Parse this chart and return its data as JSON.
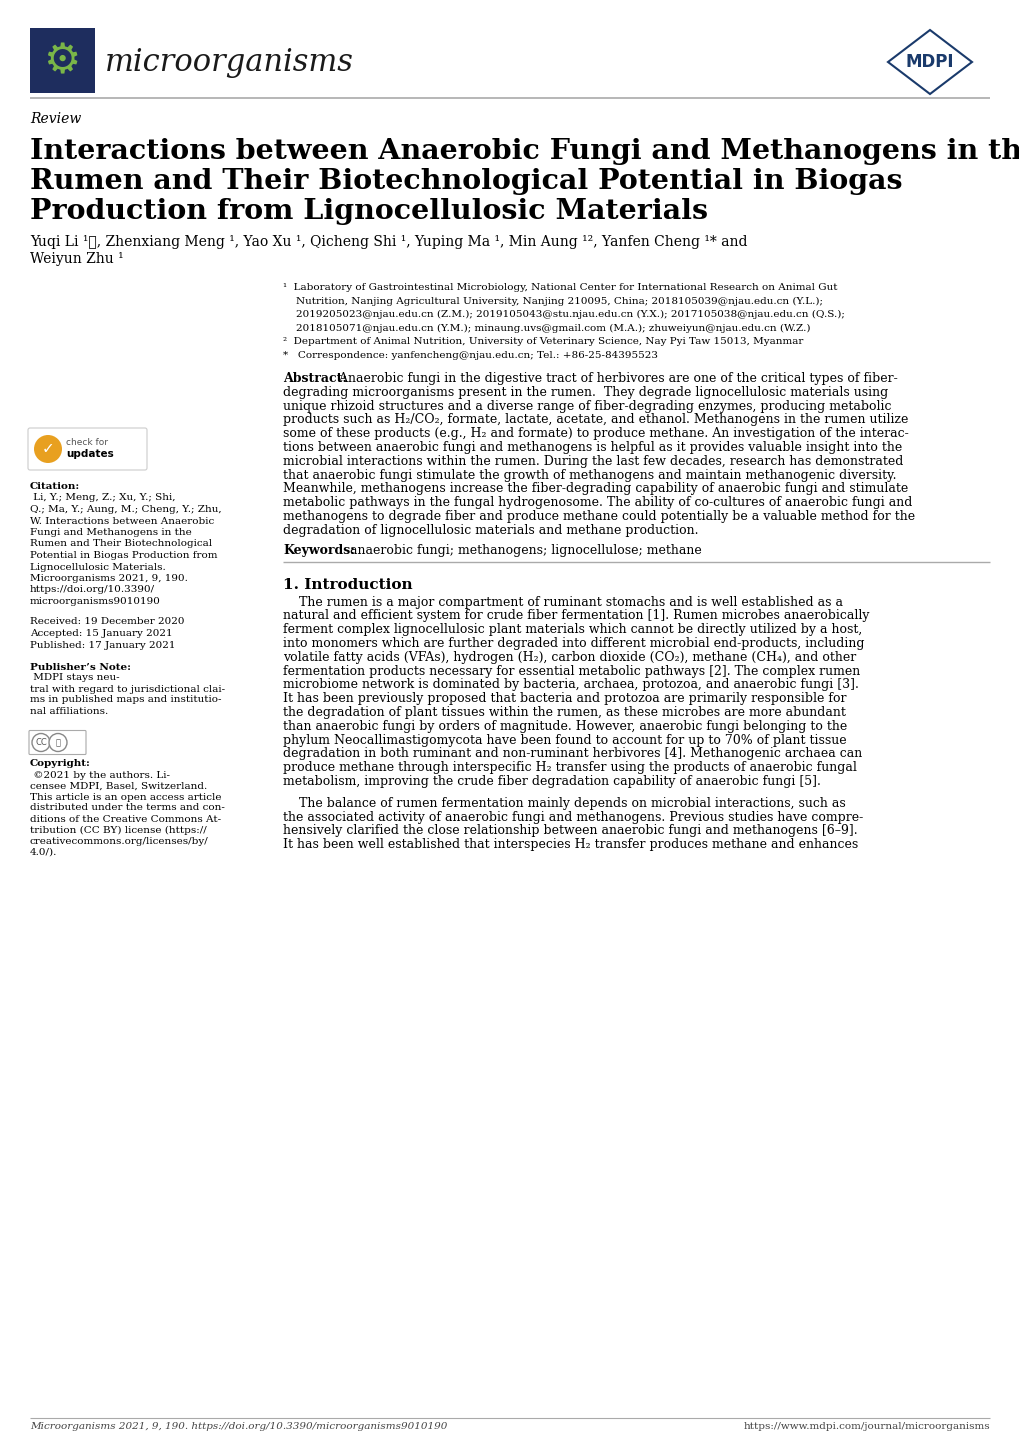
{
  "bg_color": "#ffffff",
  "text_color": "#000000",
  "journal_name": "microorganisms",
  "review_label": "Review",
  "title_line1": "Interactions between Anaerobic Fungi and Methanogens in the",
  "title_line2": "Rumen and Their Biotechnological Potential in Biogas",
  "title_line3": "Production from Lignocellulosic Materials",
  "authors": "Yuqi Li ¹ⓘ, Zhenxiang Meng ¹, Yao Xu ¹, Qicheng Shi ¹, Yuping Ma ¹, Min Aung ¹², Yanfen Cheng ¹* and",
  "authors2": "Weiyun Zhu ¹",
  "affil1": "¹  Laboratory of Gastrointestinal Microbiology, National Center for International Research on Animal Gut",
  "affil1b": "    Nutrition, Nanjing Agricultural University, Nanjing 210095, China; 2018105039@njau.edu.cn (Y.L.);",
  "affil1c": "    2019205023@njau.edu.cn (Z.M.); 2019105043@stu.njau.edu.cn (Y.X.); 2017105038@njau.edu.cn (Q.S.);",
  "affil1d": "    2018105071@njau.edu.cn (Y.M.); minaung.uvs@gmail.com (M.A.); zhuweiyun@njau.edu.cn (W.Z.)",
  "affil2": "²  Department of Animal Nutrition, University of Veterinary Science, Nay Pyi Taw 15013, Myanmar",
  "affil3": "*   Correspondence: yanfencheng@njau.edu.cn; Tel.: +86-25-84395523",
  "abstract_label": "Abstract:",
  "keywords_label": "Keywords:",
  "keywords_text": " anaerobic fungi; methanogens; lignocellulose; methane",
  "section1_title": "1. Introduction",
  "footer_citation": "Microorganisms 2021, 9, 190. https://doi.org/10.3390/microorganisms9010190",
  "footer_url": "https://www.mdpi.com/journal/microorganisms",
  "header_color": "#1a3a6b",
  "logo_bg": "#1e2d5e",
  "logo_green": "#7ab648",
  "mdpi_border": "#1a3a6b",
  "abstract_lines": [
    " Anaerobic fungi in the digestive tract of herbivores are one of the critical types of fiber-",
    "degrading microorganisms present in the rumen.  They degrade lignocellulosic materials using",
    "unique rhizoid structures and a diverse range of fiber-degrading enzymes, producing metabolic",
    "products such as H₂/CO₂, formate, lactate, acetate, and ethanol. Methanogens in the rumen utilize",
    "some of these products (e.g., H₂ and formate) to produce methane. An investigation of the interac-",
    "tions between anaerobic fungi and methanogens is helpful as it provides valuable insight into the",
    "microbial interactions within the rumen. During the last few decades, research has demonstrated",
    "that anaerobic fungi stimulate the growth of methanogens and maintain methanogenic diversity.",
    "Meanwhile, methanogens increase the fiber-degrading capability of anaerobic fungi and stimulate",
    "metabolic pathways in the fungal hydrogenosome. The ability of co-cultures of anaerobic fungi and",
    "methanogens to degrade fiber and produce methane could potentially be a valuable method for the",
    "degradation of lignocellulosic materials and methane production."
  ],
  "intro_lines1": [
    "    The rumen is a major compartment of ruminant stomachs and is well established as a",
    "natural and efficient system for crude fiber fermentation [1]. Rumen microbes anaerobically",
    "ferment complex lignocellulosic plant materials which cannot be directly utilized by a host,",
    "into monomers which are further degraded into different microbial end-products, including",
    "volatile fatty acids (VFAs), hydrogen (H₂), carbon dioxide (CO₂), methane (CH₄), and other",
    "fermentation products necessary for essential metabolic pathways [2]. The complex rumen",
    "microbiome network is dominated by bacteria, archaea, protozoa, and anaerobic fungi [3].",
    "It has been previously proposed that bacteria and protozoa are primarily responsible for",
    "the degradation of plant tissues within the rumen, as these microbes are more abundant",
    "than anaerobic fungi by orders of magnitude. However, anaerobic fungi belonging to the",
    "phylum Neocallimastigomycota have been found to account for up to 70% of plant tissue",
    "degradation in both ruminant and non-ruminant herbivores [4]. Methanogenic archaea can",
    "produce methane through interspecific H₂ transfer using the products of anaerobic fungal",
    "metabolism, improving the crude fiber degradation capability of anaerobic fungi [5]."
  ],
  "intro_lines2": [
    "    The balance of rumen fermentation mainly depends on microbial interactions, such as",
    "the associated activity of anaerobic fungi and methanogens. Previous studies have compre-",
    "hensively clarified the close relationship between anaerobic fungi and methanogens [6–9].",
    "It has been well established that interspecies H₂ transfer produces methane and enhances"
  ],
  "citation_lines": [
    [
      "Citation:",
      true
    ],
    [
      " Li, Y.; Meng, Z.; Xu, Y.; Shi,",
      false
    ],
    [
      "Q.; Ma, Y.; Aung, M.; Cheng, Y.; Zhu,",
      false
    ],
    [
      "W. Interactions between Anaerobic",
      false
    ],
    [
      "Fungi and Methanogens in the",
      false
    ],
    [
      "Rumen and Their Biotechnological",
      false
    ],
    [
      "Potential in Biogas Production from",
      false
    ],
    [
      "Lignocellulosic Materials.",
      false
    ],
    [
      "Microorganisms 2021, 9, 190.",
      false
    ],
    [
      "https://doi.org/10.3390/",
      false
    ],
    [
      "microorganisms9010190",
      false
    ]
  ],
  "pub_note_lines": [
    [
      "Publisher’s Note:",
      true
    ],
    [
      " MDPI stays neu-",
      false
    ],
    [
      "tral with regard to jurisdictional clai-",
      false
    ],
    [
      "ms in published maps and institutio-",
      false
    ],
    [
      "nal affiliations.",
      false
    ]
  ],
  "copyright_lines": [
    [
      "Copyright:",
      true
    ],
    [
      " ©2021 by the authors. Li-",
      false
    ],
    [
      "censee MDPI, Basel, Switzerland.",
      false
    ],
    [
      "This article is an open access article",
      false
    ],
    [
      "distributed under the terms and con-",
      false
    ],
    [
      "ditions of the Creative Commons At-",
      false
    ],
    [
      "tribution (CC BY) license (https://",
      false
    ],
    [
      "creativecommons.org/licenses/by/",
      false
    ],
    [
      "4.0/).",
      false
    ]
  ]
}
